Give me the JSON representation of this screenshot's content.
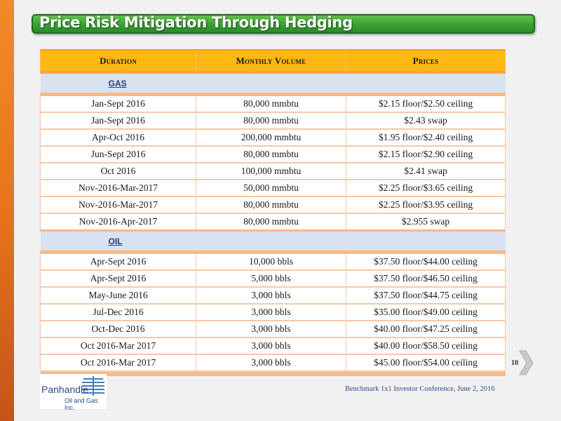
{
  "title": "Price Risk Mitigation Through Hedging",
  "table": {
    "headers": [
      "Duration",
      "Monthly Volume",
      "Prices"
    ],
    "sections": [
      {
        "label": "GAS",
        "rows": [
          [
            "Jan-Sept 2016",
            "80,000 mmbtu",
            "$2.15 floor/$2.50 ceiling"
          ],
          [
            "Jan-Sept 2016",
            "80,000 mmbtu",
            "$2.43 swap"
          ],
          [
            "Apr-Oct 2016",
            "200,000 mmbtu",
            "$1.95 floor/$2.40 ceiling"
          ],
          [
            "Jun-Sept 2016",
            "80,000 mmbtu",
            "$2.15 floor/$2.90 ceiling"
          ],
          [
            "Oct 2016",
            "100,000 mmbtu",
            "$2.41 swap"
          ],
          [
            "Nov-2016-Mar-2017",
            "50,000 mmbtu",
            "$2.25 floor/$3.65 ceiling"
          ],
          [
            "Nov-2016-Mar-2017",
            "80,000 mmbtu",
            "$2.25 floor/$3.95 ceiling"
          ],
          [
            "Nov-2016-Apr-2017",
            "80,000 mmbtu",
            "$2.955 swap"
          ]
        ]
      },
      {
        "label": "OIL",
        "rows": [
          [
            "Apr-Sept 2016",
            "10,000 bbls",
            "$37.50 floor/$44.00 ceiling"
          ],
          [
            "Apr-Sept 2016",
            "5,000 bbls",
            "$37.50 floor/$46.50 ceiling"
          ],
          [
            "May-June 2016",
            "3,000 bbls",
            "$37.50 floor/$44.75 ceiling"
          ],
          [
            "Jul-Dec 2016",
            "3,000 bbls",
            "$35.00 floor/$49.00 ceiling"
          ],
          [
            "Oct-Dec 2016",
            "3,000 bbls",
            "$40.00 floor/$47.25 ceiling"
          ],
          [
            "Oct 2016-Mar 2017",
            "3,000 bbls",
            "$40.00 floor/$58.50 ceiling"
          ],
          [
            "Oct 2016-Mar 2017",
            "3,000 bbls",
            "$45.00 floor/$54.00 ceiling"
          ]
        ]
      }
    ]
  },
  "page_number": "10",
  "logo": {
    "name": "Panhandle",
    "subtitle": "Oil and Gas Inc."
  },
  "footer": "Benchmark 1x1 Investor Conference, June 2, 2016",
  "colors": {
    "header_fill": "#fdb813",
    "section_fill": "#d8e2f0",
    "title_green": "#3aa035",
    "accent_orange": "#e8741a"
  }
}
